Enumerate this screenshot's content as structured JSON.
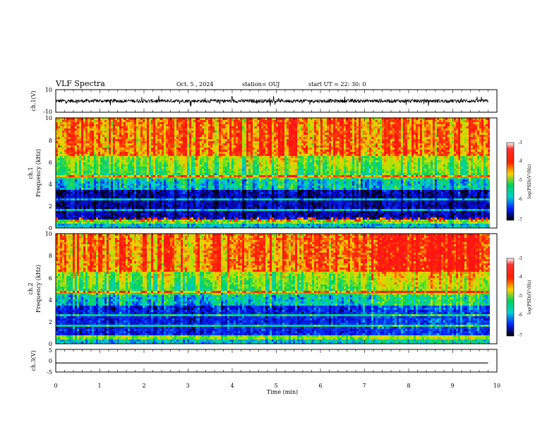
{
  "header": {
    "title": "VLF Spectra",
    "date": "Oct. 5 , 2024",
    "station": "station= OUJ",
    "start": "start UT =  22: 30: 0"
  },
  "panels": {
    "ch1_wave": {
      "ylabel": "ch.1(V)",
      "ticks": [
        "10",
        "-10"
      ]
    },
    "ch1_spec": {
      "ylabel_top": "ch.1",
      "ylabel": "Frequency (kHz)",
      "ticks": [
        "10",
        "8",
        "6",
        "4",
        "2",
        "0"
      ]
    },
    "ch2_spec": {
      "ylabel_top": "ch.2",
      "ylabel": "Frequency (kHz)",
      "ticks": [
        "10",
        "8",
        "6",
        "4",
        "2",
        "0"
      ]
    },
    "ch3_wave": {
      "ylabel": "ch.3(V)",
      "ticks": [
        "5",
        "0",
        "-5"
      ]
    }
  },
  "xaxis": {
    "label": "Time (min)",
    "ticks": [
      "0",
      "1",
      "2",
      "3",
      "4",
      "5",
      "6",
      "7",
      "8",
      "9",
      "10"
    ]
  },
  "colorbar": {
    "label": "log(PSD)(V²/Hz)",
    "ticks": [
      "-3",
      "-4",
      "-5",
      "-6",
      "-7"
    ]
  },
  "colors": {
    "high": "#ff2200",
    "mid": "#00dd66",
    "low": "#0000cc"
  },
  "chart_data": [
    {
      "type": "line",
      "name": "ch.1 waveform",
      "xlabel": "",
      "ylabel": "ch.1(V)",
      "xlim": [
        0,
        10
      ],
      "ylim": [
        -10,
        10
      ],
      "x_end": 9.8,
      "baseline": 0,
      "noise_amplitude": 2.5,
      "spike_amplitude": 5
    },
    {
      "type": "heatmap",
      "name": "ch.1 spectrogram",
      "xlabel": "",
      "ylabel": "Frequency (kHz)",
      "xlim": [
        0,
        10
      ],
      "ylim": [
        0,
        10
      ],
      "x_end": 9.8,
      "zlabel": "log(PSD)(V²/Hz)",
      "zlim": [
        -7,
        -3
      ],
      "description": "high PSD (~-3) above ~5 kHz, low PSD (~-7) between 0.5 and 3.5 kHz, bright band near 0.5 kHz"
    },
    {
      "type": "heatmap",
      "name": "ch.2 spectrogram",
      "xlabel": "",
      "ylabel": "Frequency (kHz)",
      "xlim": [
        0,
        10
      ],
      "ylim": [
        0,
        10
      ],
      "x_end": 9.8,
      "zlabel": "log(PSD)(V²/Hz)",
      "zlim": [
        -7,
        -3
      ],
      "description": "high PSD above ~5 kHz, low PSD 1-3.5 kHz, more mixed after 7 min"
    },
    {
      "type": "line",
      "name": "ch.3 waveform",
      "xlabel": "Time (min)",
      "ylabel": "ch.3(V)",
      "xlim": [
        0,
        10
      ],
      "ylim": [
        -5,
        5
      ],
      "x_end": 9.8,
      "constant_value": -1
    }
  ]
}
